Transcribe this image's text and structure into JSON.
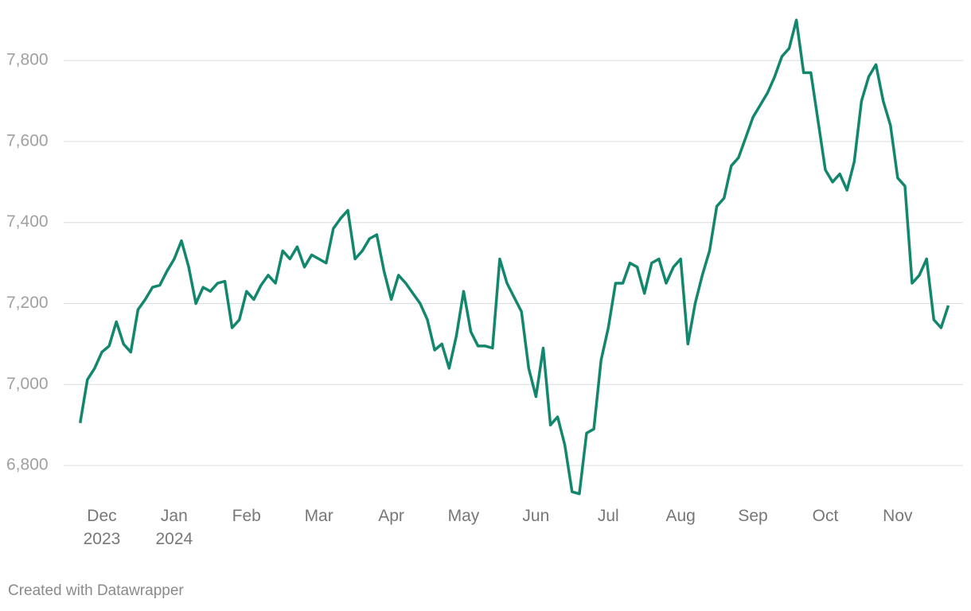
{
  "chart_data": {
    "type": "line",
    "categories": [
      null,
      null,
      null,
      "Dec\n2023",
      null,
      null,
      null,
      null,
      null,
      null,
      null,
      null,
      null,
      "Jan\n2024",
      null,
      null,
      null,
      null,
      null,
      null,
      null,
      null,
      null,
      "Feb",
      null,
      null,
      null,
      null,
      null,
      null,
      null,
      null,
      null,
      "Mar",
      null,
      null,
      null,
      null,
      null,
      null,
      null,
      null,
      null,
      "Apr",
      null,
      null,
      null,
      null,
      null,
      null,
      null,
      null,
      null,
      "May",
      null,
      null,
      null,
      null,
      null,
      null,
      null,
      null,
      null,
      "Jun",
      null,
      null,
      null,
      null,
      null,
      null,
      null,
      null,
      null,
      "Jul",
      null,
      null,
      null,
      null,
      null,
      null,
      null,
      null,
      null,
      "Aug",
      null,
      null,
      null,
      null,
      null,
      null,
      null,
      null,
      null,
      "Sep",
      null,
      null,
      null,
      null,
      null,
      null,
      null,
      null,
      null,
      "Oct",
      null,
      null,
      null,
      null,
      null,
      null,
      null,
      null,
      null,
      "Nov",
      null,
      null,
      null,
      null,
      null,
      null,
      null
    ],
    "values": [
      6905,
      7012,
      7040,
      7080,
      7095,
      7155,
      7100,
      7080,
      7185,
      7210,
      7240,
      7245,
      7280,
      7310,
      7355,
      7290,
      7200,
      7240,
      7230,
      7250,
      7255,
      7140,
      7160,
      7230,
      7210,
      7245,
      7270,
      7250,
      7330,
      7310,
      7340,
      7290,
      7320,
      7310,
      7300,
      7385,
      7410,
      7430,
      7310,
      7330,
      7360,
      7370,
      7280,
      7210,
      7270,
      7250,
      7225,
      7200,
      7160,
      7085,
      7100,
      7040,
      7120,
      7230,
      7130,
      7095,
      7095,
      7090,
      7310,
      7250,
      7215,
      7180,
      7040,
      6970,
      7090,
      6900,
      6920,
      6850,
      6735,
      6730,
      6880,
      6890,
      7060,
      7140,
      7250,
      7250,
      7300,
      7290,
      7225,
      7300,
      7310,
      7250,
      7290,
      7310,
      7100,
      7200,
      7270,
      7330,
      7440,
      7460,
      7540,
      7560,
      7610,
      7660,
      7690,
      7720,
      7760,
      7810,
      7830,
      7900,
      7770,
      7770,
      7650,
      7530,
      7500,
      7520,
      7480,
      7550,
      7700,
      7760,
      7790,
      7700,
      7640,
      7510,
      7490,
      7250,
      7270,
      7310,
      7160,
      7140,
      7195
    ],
    "color": "#13876d",
    "ylim": [
      6700,
      7920
    ],
    "yticks": [
      {
        "value": 6800,
        "label": "6,800"
      },
      {
        "value": 7000,
        "label": "7,000"
      },
      {
        "value": 7200,
        "label": "7,200"
      },
      {
        "value": 7400,
        "label": "7,400"
      },
      {
        "value": 7600,
        "label": "7,600"
      },
      {
        "value": 7800,
        "label": "7,800"
      }
    ],
    "grid": true,
    "footer": "Created with Datawrapper"
  }
}
